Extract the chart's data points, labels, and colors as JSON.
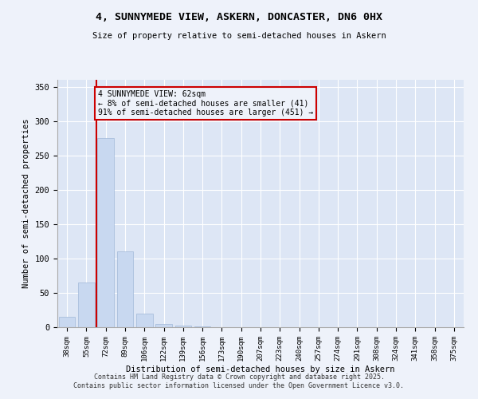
{
  "title_line1": "4, SUNNYMEDE VIEW, ASKERN, DONCASTER, DN6 0HX",
  "title_line2": "Size of property relative to semi-detached houses in Askern",
  "xlabel": "Distribution of semi-detached houses by size in Askern",
  "ylabel": "Number of semi-detached properties",
  "bar_labels": [
    "38sqm",
    "55sqm",
    "72sqm",
    "89sqm",
    "106sqm",
    "122sqm",
    "139sqm",
    "156sqm",
    "173sqm",
    "190sqm",
    "207sqm",
    "223sqm",
    "240sqm",
    "257sqm",
    "274sqm",
    "291sqm",
    "308sqm",
    "324sqm",
    "341sqm",
    "358sqm",
    "375sqm"
  ],
  "bar_values": [
    15,
    65,
    275,
    110,
    20,
    5,
    2,
    1,
    0,
    0,
    0,
    0,
    0,
    0,
    0,
    0,
    0,
    0,
    0,
    0,
    0
  ],
  "bar_color": "#c8d8f0",
  "bar_edge_color": "#a0b8d8",
  "vline_index": 1.5,
  "vline_color": "#cc0000",
  "annotation_text": "4 SUNNYMEDE VIEW: 62sqm\n← 8% of semi-detached houses are smaller (41)\n91% of semi-detached houses are larger (451) →",
  "annotation_box_color": "#cc0000",
  "ylim": [
    0,
    360
  ],
  "yticks": [
    0,
    50,
    100,
    150,
    200,
    250,
    300,
    350
  ],
  "footer_line1": "Contains HM Land Registry data © Crown copyright and database right 2025.",
  "footer_line2": "Contains public sector information licensed under the Open Government Licence v3.0.",
  "bg_color": "#eef2fa",
  "plot_bg_color": "#dde6f5"
}
